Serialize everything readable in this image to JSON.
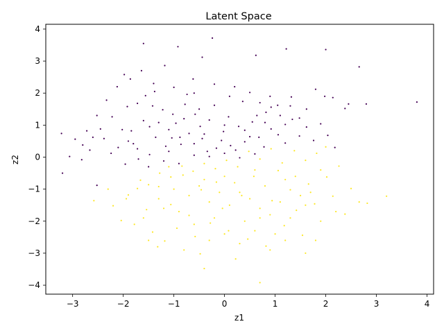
{
  "chart_data": {
    "type": "scatter",
    "title": "Latent Space",
    "xlabel": "z1",
    "ylabel": "z2",
    "xlim": [
      -3.53,
      4.13
    ],
    "ylim": [
      -4.28,
      4.15
    ],
    "xticks": [
      -3,
      -2,
      -1,
      0,
      1,
      2,
      3,
      4
    ],
    "yticks": [
      -4,
      -3,
      -2,
      -1,
      0,
      1,
      2,
      3,
      4
    ],
    "grid": false,
    "colors": {
      "class_0": "#440154",
      "class_1": "#fde725"
    },
    "series": [
      {
        "color": "#440154",
        "points": [
          [
            -3.22,
            0.74
          ],
          [
            -3.2,
            -0.5
          ],
          [
            -3.06,
            0.02
          ],
          [
            -2.95,
            0.56
          ],
          [
            -2.8,
            0.38
          ],
          [
            -2.72,
            0.82
          ],
          [
            -2.6,
            0.62
          ],
          [
            -2.52,
            1.3
          ],
          [
            -2.45,
            0.88
          ],
          [
            -2.33,
            1.78
          ],
          [
            -2.22,
            1.26
          ],
          [
            -2.12,
            2.2
          ],
          [
            -2.02,
            0.86
          ],
          [
            -1.98,
            2.58
          ],
          [
            -1.92,
            1.58
          ],
          [
            -1.86,
            2.44
          ],
          [
            -1.8,
            0.42
          ],
          [
            -1.72,
            1.68
          ],
          [
            -1.64,
            2.7
          ],
          [
            -1.56,
            1.92
          ],
          [
            -1.6,
            3.55
          ],
          [
            -1.48,
            0.95
          ],
          [
            -1.38,
            2.05
          ],
          [
            -1.18,
            2.86
          ],
          [
            -1.04,
            0.6
          ],
          [
            -0.92,
            3.45
          ],
          [
            -0.78,
            1.65
          ],
          [
            -0.62,
            2.44
          ],
          [
            -0.44,
            3.12
          ],
          [
            -0.24,
            3.72
          ],
          [
            0.62,
            3.18
          ],
          [
            1.22,
            3.38
          ],
          [
            2.0,
            3.36
          ],
          [
            2.66,
            2.82
          ],
          [
            3.8,
            1.72
          ],
          [
            2.8,
            1.66
          ],
          [
            2.45,
            1.66
          ],
          [
            2.38,
            1.52
          ],
          [
            2.14,
            1.86
          ],
          [
            1.98,
            1.9
          ],
          [
            1.8,
            2.12
          ],
          [
            1.62,
            1.5
          ],
          [
            1.48,
            1.22
          ],
          [
            1.32,
            1.88
          ],
          [
            1.2,
            1.02
          ],
          [
            1.05,
            1.62
          ],
          [
            0.92,
            0.88
          ],
          [
            0.82,
            1.4
          ],
          [
            0.68,
            0.62
          ],
          [
            0.55,
            1.1
          ],
          [
            0.4,
            0.48
          ],
          [
            0.28,
            0.96
          ],
          [
            0.12,
            0.36
          ],
          [
            -0.02,
            0.8
          ],
          [
            -0.16,
            0.28
          ],
          [
            -0.3,
            1.16
          ],
          [
            -0.44,
            0.58
          ],
          [
            -0.58,
            1.34
          ],
          [
            -0.7,
            0.74
          ],
          [
            -0.86,
            0.4
          ],
          [
            -0.96,
            1.06
          ],
          [
            -1.1,
            0.18
          ],
          [
            -1.22,
            1.48
          ],
          [
            -1.36,
            0.62
          ],
          [
            -1.48,
            0.08
          ],
          [
            -1.6,
            1.14
          ],
          [
            -1.72,
            0.26
          ],
          [
            -1.84,
            0.82
          ],
          [
            -1.96,
            -0.22
          ],
          [
            -2.1,
            0.3
          ],
          [
            -2.24,
            0.12
          ],
          [
            -2.38,
            0.58
          ],
          [
            -2.52,
            -0.88
          ],
          [
            -2.66,
            0.22
          ],
          [
            -2.82,
            -0.08
          ],
          [
            -1.42,
            1.6
          ],
          [
            -1.3,
            1.08
          ],
          [
            -1.16,
            0.34
          ],
          [
            -1.02,
            1.34
          ],
          [
            -0.88,
            0.62
          ],
          [
            -0.74,
            1.96
          ],
          [
            -0.6,
            0.42
          ],
          [
            -0.48,
            0.96
          ],
          [
            -0.34,
            0.18
          ],
          [
            -0.2,
            1.62
          ],
          [
            -0.06,
            0.52
          ],
          [
            0.08,
            1.26
          ],
          [
            0.22,
            0.22
          ],
          [
            0.36,
            1.74
          ],
          [
            0.5,
            0.64
          ],
          [
            0.64,
            1.3
          ],
          [
            0.78,
            0.32
          ],
          [
            0.92,
            1.56
          ],
          [
            1.06,
            0.7
          ],
          [
            1.2,
            0.44
          ],
          [
            1.34,
            1.18
          ],
          [
            1.48,
            0.66
          ],
          [
            1.62,
            0.94
          ],
          [
            1.76,
            0.52
          ],
          [
            1.9,
            1.04
          ],
          [
            2.04,
            0.68
          ],
          [
            2.18,
            0.3
          ],
          [
            -1.4,
            2.3
          ],
          [
            -1.0,
            2.18
          ],
          [
            -0.6,
            2.0
          ],
          [
            -0.2,
            2.28
          ],
          [
            0.2,
            2.2
          ],
          [
            0.5,
            2.02
          ],
          [
            0.9,
            1.9
          ],
          [
            1.3,
            1.6
          ],
          [
            -1.2,
            -0.12
          ],
          [
            -0.9,
            -0.2
          ],
          [
            -0.6,
            0.06
          ],
          [
            -0.3,
            0.02
          ],
          [
            0.0,
            0.12
          ],
          [
            0.3,
            -0.02
          ],
          [
            0.6,
            0.1
          ],
          [
            -1.5,
            -0.3
          ],
          [
            -1.7,
            -0.06
          ],
          [
            -1.9,
            0.5
          ],
          [
            -0.8,
            1.2
          ],
          [
            -0.4,
            0.72
          ],
          [
            0.0,
            1.0
          ],
          [
            0.4,
            0.84
          ],
          [
            0.8,
            1.08
          ],
          [
            1.1,
            1.3
          ],
          [
            -1.1,
            0.86
          ],
          [
            -0.5,
            1.5
          ],
          [
            0.1,
            1.9
          ],
          [
            0.7,
            1.7
          ]
        ]
      },
      {
        "color": "#fde725",
        "points": [
          [
            -2.58,
            -1.36
          ],
          [
            -2.2,
            -1.52
          ],
          [
            -2.04,
            -1.98
          ],
          [
            -1.9,
            -1.18
          ],
          [
            -1.78,
            -2.1
          ],
          [
            -1.66,
            -0.72
          ],
          [
            -1.54,
            -1.64
          ],
          [
            -1.42,
            -2.34
          ],
          [
            -1.3,
            -0.92
          ],
          [
            -1.18,
            -2.62
          ],
          [
            -1.32,
            -2.8
          ],
          [
            -1.06,
            -1.48
          ],
          [
            -0.94,
            -2.22
          ],
          [
            -0.82,
            -0.56
          ],
          [
            -0.7,
            -1.82
          ],
          [
            -0.58,
            -2.48
          ],
          [
            -0.46,
            -1.02
          ],
          [
            -0.48,
            -3.02
          ],
          [
            -0.4,
            -3.48
          ],
          [
            -0.28,
            -2.06
          ],
          [
            -0.16,
            -0.78
          ],
          [
            -0.04,
            -1.6
          ],
          [
            0.08,
            -2.3
          ],
          [
            0.22,
            -3.18
          ],
          [
            0.34,
            -1.2
          ],
          [
            0.46,
            -2.56
          ],
          [
            0.58,
            -0.6
          ],
          [
            0.7,
            -1.9
          ],
          [
            0.7,
            -3.92
          ],
          [
            0.82,
            -2.78
          ],
          [
            0.94,
            -1.36
          ],
          [
            1.06,
            -0.42
          ],
          [
            1.18,
            -2.14
          ],
          [
            1.3,
            -1.02
          ],
          [
            1.42,
            -1.66
          ],
          [
            1.54,
            -2.44
          ],
          [
            1.6,
            -3.0
          ],
          [
            1.66,
            -0.84
          ],
          [
            1.78,
            -1.46
          ],
          [
            1.9,
            -2.0
          ],
          [
            2.02,
            -0.62
          ],
          [
            2.14,
            -1.22
          ],
          [
            2.26,
            -0.28
          ],
          [
            2.38,
            -1.78
          ],
          [
            2.5,
            -0.98
          ],
          [
            2.66,
            -1.4
          ],
          [
            2.82,
            -1.44
          ],
          [
            3.2,
            -1.22
          ],
          [
            2.0,
            0.32
          ],
          [
            1.82,
            0.12
          ],
          [
            1.6,
            -0.1
          ],
          [
            1.38,
            0.2
          ],
          [
            1.14,
            -0.18
          ],
          [
            0.92,
            0.26
          ],
          [
            0.7,
            -0.06
          ],
          [
            0.48,
            0.18
          ],
          [
            0.26,
            -0.3
          ],
          [
            0.04,
            -0.1
          ],
          [
            -0.18,
            -0.36
          ],
          [
            -0.4,
            -0.2
          ],
          [
            -0.62,
            -0.44
          ],
          [
            -0.84,
            -0.28
          ],
          [
            -1.06,
            -0.62
          ],
          [
            -1.28,
            -0.5
          ],
          [
            -1.5,
            -0.86
          ],
          [
            -1.72,
            -0.98
          ],
          [
            -1.94,
            -1.3
          ],
          [
            -1.3,
            -1.3
          ],
          [
            -1.0,
            -1.0
          ],
          [
            -0.7,
            -1.2
          ],
          [
            -0.4,
            -0.7
          ],
          [
            -0.1,
            -1.1
          ],
          [
            0.2,
            -0.8
          ],
          [
            0.5,
            -1.3
          ],
          [
            0.8,
            -0.9
          ],
          [
            1.1,
            -1.4
          ],
          [
            1.4,
            -0.6
          ],
          [
            1.7,
            -1.1
          ],
          [
            -0.9,
            -1.7
          ],
          [
            -0.6,
            -2.1
          ],
          [
            -0.2,
            -1.9
          ],
          [
            0.1,
            -1.5
          ],
          [
            0.4,
            -2.0
          ],
          [
            0.7,
            -1.6
          ],
          [
            1.0,
            -2.4
          ],
          [
            1.3,
            -1.9
          ],
          [
            1.6,
            -1.5
          ],
          [
            -1.6,
            -1.9
          ],
          [
            -1.2,
            -1.6
          ],
          [
            -0.3,
            -2.6
          ],
          [
            0.3,
            -2.7
          ],
          [
            0.9,
            -2.9
          ],
          [
            1.2,
            -2.6
          ],
          [
            -0.8,
            -2.9
          ],
          [
            0.0,
            -2.4
          ],
          [
            0.6,
            -2.3
          ],
          [
            -1.5,
            -2.6
          ],
          [
            1.8,
            -2.6
          ],
          [
            2.2,
            -1.7
          ],
          [
            -2.3,
            -1.0
          ],
          [
            -0.5,
            -0.9
          ],
          [
            0.0,
            -0.6
          ],
          [
            0.6,
            -0.4
          ],
          [
            1.2,
            -0.7
          ],
          [
            -1.1,
            -0.3
          ],
          [
            -0.3,
            -1.4
          ],
          [
            0.3,
            -1.1
          ],
          [
            0.9,
            -1.8
          ],
          [
            1.5,
            -1.2
          ],
          [
            1.9,
            -0.4
          ]
        ]
      }
    ]
  }
}
